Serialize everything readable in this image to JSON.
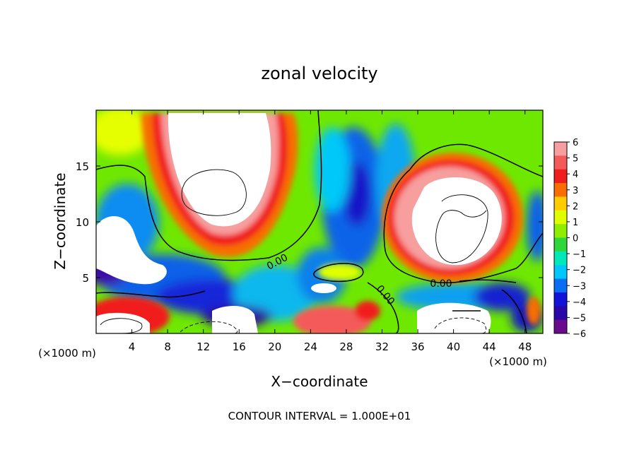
{
  "chart_data": {
    "type": "heatmap",
    "title": "zonal velocity",
    "xlabel": "X−coordinate",
    "ylabel": "Z−coordinate",
    "x_unit_left": "(×1000 m)",
    "x_unit_right": "(×1000 m)",
    "xlim": [
      0,
      50
    ],
    "ylim": [
      0,
      20
    ],
    "x_ticks": [
      "4",
      "8",
      "12",
      "16",
      "20",
      "24",
      "28",
      "32",
      "36",
      "40",
      "44",
      "48"
    ],
    "y_ticks": [
      "5",
      "10",
      "15"
    ],
    "colorbar": {
      "labels": [
        "6",
        "5",
        "4",
        "3",
        "2",
        "1",
        "0",
        "−1",
        "−2",
        "−3",
        "−4",
        "−5",
        "−6"
      ],
      "colors": [
        "#f79f9f",
        "#f45a5a",
        "#f11c1c",
        "#f86e00",
        "#ffcc00",
        "#dfff00",
        "#8fee00",
        "#2fd83a",
        "#00e7b8",
        "#00c8ff",
        "#0a6ef2",
        "#1212d8",
        "#2a07a8",
        "#6a0a8c"
      ]
    },
    "contour_labels": [
      "0.00",
      "0.00",
      "0.00"
    ],
    "footer": "CONTOUR INTERVAL = 1.000E+01"
  }
}
